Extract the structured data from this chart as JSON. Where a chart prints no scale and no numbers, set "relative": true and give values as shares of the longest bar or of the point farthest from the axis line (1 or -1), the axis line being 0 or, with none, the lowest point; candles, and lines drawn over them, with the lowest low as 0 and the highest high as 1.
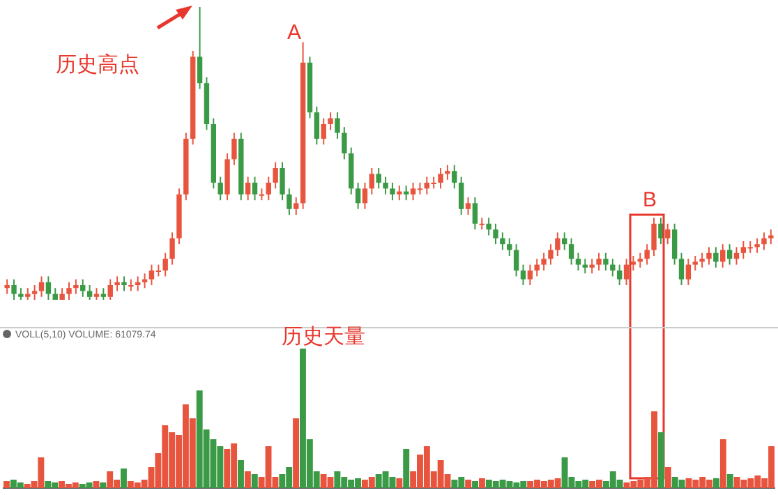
{
  "chart_data": [
    {
      "type": "candlestick",
      "relative": true,
      "annotations": [
        "历史高点",
        "A",
        "B"
      ],
      "categories": [
        null,
        null,
        null,
        null,
        null,
        null,
        null,
        null,
        null,
        null,
        null,
        null,
        null,
        null,
        null,
        null,
        null,
        null,
        null,
        null,
        null,
        null,
        null,
        null,
        null,
        null,
        null,
        null,
        null,
        null,
        null,
        null,
        null,
        null,
        null,
        null,
        null,
        null,
        null,
        null,
        null,
        null,
        null,
        null,
        null,
        null,
        null,
        null,
        null,
        null,
        null,
        null,
        null,
        null,
        null,
        null,
        null,
        null,
        null,
        null,
        null,
        null,
        null,
        null,
        null,
        null,
        null,
        null,
        null,
        null,
        null,
        null,
        null,
        null,
        null,
        null,
        null,
        null,
        null,
        null,
        null,
        null,
        null,
        null,
        null,
        null,
        null,
        null,
        null,
        null,
        null,
        null,
        null,
        null,
        null,
        null,
        null,
        null,
        null,
        null,
        null,
        null,
        null,
        null,
        null,
        null,
        null,
        null,
        null,
        null,
        null,
        null
      ],
      "ohlc": [
        [
          0.04,
          0.07,
          0.02,
          0.05
        ],
        [
          0.05,
          0.07,
          0,
          0.02
        ],
        [
          0.02,
          0.04,
          0,
          0.01
        ],
        [
          0.01,
          0.04,
          0,
          0.02
        ],
        [
          0.02,
          0.05,
          0,
          0.03
        ],
        [
          0.03,
          0.08,
          0.01,
          0.06
        ],
        [
          0.06,
          0.08,
          0,
          0.02
        ],
        [
          0.02,
          0.04,
          0,
          0
        ],
        [
          0,
          0.04,
          0,
          0.02
        ],
        [
          0.02,
          0.06,
          0,
          0.04
        ],
        [
          0.04,
          0.07,
          0.02,
          0.05
        ],
        [
          0.05,
          0.07,
          0.01,
          0.03
        ],
        [
          0.03,
          0.05,
          0,
          0.01
        ],
        [
          0.01,
          0.04,
          0,
          0.02
        ],
        [
          0.02,
          0.04,
          0,
          0.01
        ],
        [
          0.01,
          0.07,
          0,
          0.05
        ],
        [
          0.05,
          0.08,
          0.03,
          0.06
        ],
        [
          0.06,
          0.08,
          0.03,
          0.05
        ],
        [
          0.05,
          0.07,
          0.03,
          0.05
        ],
        [
          0.05,
          0.08,
          0.03,
          0.06
        ],
        [
          0.06,
          0.09,
          0.04,
          0.07
        ],
        [
          0.07,
          0.12,
          0.05,
          0.1
        ],
        [
          0.1,
          0.12,
          0.08,
          0.1
        ],
        [
          0.1,
          0.16,
          0.08,
          0.14
        ],
        [
          0.14,
          0.23,
          0.12,
          0.21
        ],
        [
          0.21,
          0.38,
          0.19,
          0.36
        ],
        [
          0.36,
          0.57,
          0.34,
          0.55
        ],
        [
          0.55,
          0.85,
          0.53,
          0.83
        ],
        [
          0.83,
          1,
          0.72,
          0.74
        ],
        [
          0.74,
          0.76,
          0.58,
          0.6
        ],
        [
          0.6,
          0.62,
          0.38,
          0.4
        ],
        [
          0.4,
          0.42,
          0.34,
          0.36
        ],
        [
          0.36,
          0.5,
          0.34,
          0.48
        ],
        [
          0.48,
          0.57,
          0.46,
          0.55
        ],
        [
          0.55,
          0.57,
          0.34,
          0.36
        ],
        [
          0.36,
          0.42,
          0.34,
          0.4
        ],
        [
          0.4,
          0.42,
          0.34,
          0.36
        ],
        [
          0.36,
          0.38,
          0.34,
          0.36
        ],
        [
          0.36,
          0.42,
          0.34,
          0.4
        ],
        [
          0.4,
          0.47,
          0.38,
          0.45
        ],
        [
          0.45,
          0.47,
          0.34,
          0.36
        ],
        [
          0.36,
          0.38,
          0.29,
          0.31
        ],
        [
          0.31,
          0.35,
          0.29,
          0.33
        ],
        [
          0.33,
          0.88,
          0.31,
          0.81
        ],
        [
          0.81,
          0.83,
          0.62,
          0.64
        ],
        [
          0.64,
          0.66,
          0.53,
          0.55
        ],
        [
          0.55,
          0.62,
          0.53,
          0.6
        ],
        [
          0.6,
          0.64,
          0.58,
          0.62
        ],
        [
          0.62,
          0.64,
          0.55,
          0.57
        ],
        [
          0.57,
          0.59,
          0.48,
          0.5
        ],
        [
          0.5,
          0.52,
          0.36,
          0.38
        ],
        [
          0.38,
          0.4,
          0.31,
          0.33
        ],
        [
          0.33,
          0.4,
          0.31,
          0.38
        ],
        [
          0.38,
          0.45,
          0.36,
          0.43
        ],
        [
          0.43,
          0.45,
          0.38,
          0.4
        ],
        [
          0.4,
          0.42,
          0.36,
          0.38
        ],
        [
          0.38,
          0.4,
          0.34,
          0.36
        ],
        [
          0.36,
          0.39,
          0.34,
          0.37
        ],
        [
          0.37,
          0.39,
          0.34,
          0.36
        ],
        [
          0.36,
          0.4,
          0.34,
          0.38
        ],
        [
          0.38,
          0.4,
          0.36,
          0.38
        ],
        [
          0.38,
          0.42,
          0.36,
          0.4
        ],
        [
          0.4,
          0.42,
          0.38,
          0.4
        ],
        [
          0.4,
          0.45,
          0.38,
          0.43
        ],
        [
          0.43,
          0.46,
          0.41,
          0.44
        ],
        [
          0.44,
          0.46,
          0.38,
          0.4
        ],
        [
          0.4,
          0.42,
          0.29,
          0.31
        ],
        [
          0.31,
          0.35,
          0.29,
          0.33
        ],
        [
          0.33,
          0.35,
          0.24,
          0.26
        ],
        [
          0.26,
          0.28,
          0.24,
          0.26
        ],
        [
          0.26,
          0.28,
          0.22,
          0.24
        ],
        [
          0.24,
          0.26,
          0.19,
          0.21
        ],
        [
          0.21,
          0.23,
          0.17,
          0.19
        ],
        [
          0.19,
          0.21,
          0.15,
          0.17
        ],
        [
          0.17,
          0.19,
          0.08,
          0.1
        ],
        [
          0.1,
          0.12,
          0.05,
          0.07
        ],
        [
          0.07,
          0.12,
          0.05,
          0.1
        ],
        [
          0.1,
          0.14,
          0.08,
          0.12
        ],
        [
          0.12,
          0.16,
          0.1,
          0.14
        ],
        [
          0.14,
          0.19,
          0.12,
          0.17
        ],
        [
          0.17,
          0.23,
          0.15,
          0.21
        ],
        [
          0.21,
          0.23,
          0.17,
          0.19
        ],
        [
          0.19,
          0.21,
          0.12,
          0.14
        ],
        [
          0.14,
          0.16,
          0.1,
          0.12
        ],
        [
          0.12,
          0.14,
          0.09,
          0.11
        ],
        [
          0.11,
          0.14,
          0.09,
          0.12
        ],
        [
          0.12,
          0.16,
          0.1,
          0.14
        ],
        [
          0.14,
          0.16,
          0.1,
          0.12
        ],
        [
          0.12,
          0.14,
          0.08,
          0.1
        ],
        [
          0.1,
          0.12,
          0.05,
          0.07
        ],
        [
          0.07,
          0.14,
          0.05,
          0.12
        ],
        [
          0.12,
          0.15,
          0.1,
          0.13
        ],
        [
          0.13,
          0.16,
          0.11,
          0.14
        ],
        [
          0.14,
          0.19,
          0.12,
          0.17
        ],
        [
          0.17,
          0.28,
          0.15,
          0.26
        ],
        [
          0.26,
          0.28,
          0.19,
          0.21
        ],
        [
          0.21,
          0.26,
          0.19,
          0.24
        ],
        [
          0.24,
          0.26,
          0.12,
          0.14
        ],
        [
          0.14,
          0.16,
          0.05,
          0.07
        ],
        [
          0.07,
          0.14,
          0.05,
          0.12
        ],
        [
          0.12,
          0.15,
          0.1,
          0.13
        ],
        [
          0.13,
          0.16,
          0.11,
          0.14
        ],
        [
          0.14,
          0.18,
          0.12,
          0.16
        ],
        [
          0.16,
          0.18,
          0.11,
          0.13
        ],
        [
          0.13,
          0.19,
          0.11,
          0.17
        ],
        [
          0.17,
          0.19,
          0.12,
          0.14
        ],
        [
          0.14,
          0.18,
          0.12,
          0.16
        ],
        [
          0.16,
          0.2,
          0.14,
          0.18
        ],
        [
          0.18,
          0.2,
          0.16,
          0.18
        ],
        [
          0.18,
          0.21,
          0.16,
          0.19
        ],
        [
          0.19,
          0.23,
          0.17,
          0.21
        ],
        [
          0.21,
          0.24,
          0.19,
          0.22
        ]
      ],
      "colors": [
        "#e8553e",
        "#3a9a45",
        "#3a9a45",
        "#e8553e",
        "#e8553e",
        "#e8553e",
        "#3a9a45",
        "#3a9a45",
        "#e8553e",
        "#e8553e",
        "#e8553e",
        "#3a9a45",
        "#3a9a45",
        "#e8553e",
        "#3a9a45",
        "#e8553e",
        "#e8553e",
        "#3a9a45",
        "#e8553e",
        "#e8553e",
        "#e8553e",
        "#e8553e",
        "#e8553e",
        "#e8553e",
        "#e8553e",
        "#e8553e",
        "#e8553e",
        "#e8553e",
        "#3a9a45",
        "#3a9a45",
        "#3a9a45",
        "#3a9a45",
        "#e8553e",
        "#e8553e",
        "#3a9a45",
        "#e8553e",
        "#3a9a45",
        "#e8553e",
        "#e8553e",
        "#e8553e",
        "#3a9a45",
        "#3a9a45",
        "#e8553e",
        "#e8553e",
        "#3a9a45",
        "#3a9a45",
        "#e8553e",
        "#e8553e",
        "#3a9a45",
        "#3a9a45",
        "#3a9a45",
        "#3a9a45",
        "#e8553e",
        "#e8553e",
        "#3a9a45",
        "#3a9a45",
        "#3a9a45",
        "#e8553e",
        "#3a9a45",
        "#e8553e",
        "#e8553e",
        "#e8553e",
        "#e8553e",
        "#e8553e",
        "#e8553e",
        "#3a9a45",
        "#3a9a45",
        "#e8553e",
        "#3a9a45",
        "#e8553e",
        "#3a9a45",
        "#3a9a45",
        "#3a9a45",
        "#3a9a45",
        "#3a9a45",
        "#3a9a45",
        "#e8553e",
        "#e8553e",
        "#e8553e",
        "#e8553e",
        "#e8553e",
        "#3a9a45",
        "#3a9a45",
        "#3a9a45",
        "#3a9a45",
        "#e8553e",
        "#e8553e",
        "#3a9a45",
        "#3a9a45",
        "#3a9a45",
        "#e8553e",
        "#e8553e",
        "#e8553e",
        "#e8553e",
        "#e8553e",
        "#3a9a45",
        "#e8553e",
        "#3a9a45",
        "#3a9a45",
        "#e8553e",
        "#e8553e",
        "#e8553e",
        "#e8553e",
        "#3a9a45",
        "#e8553e",
        "#3a9a45",
        "#e8553e",
        "#e8553e",
        "#e8553e",
        "#e8553e",
        "#e8553e",
        "#e8553e"
      ]
    },
    {
      "type": "bar",
      "relative": true,
      "title": "VOLL(5,10)  VOLUME: 61079.74",
      "annotations": [
        "历史天量"
      ],
      "categories": [
        null,
        null,
        null,
        null,
        null,
        null,
        null,
        null,
        null,
        null,
        null,
        null,
        null,
        null,
        null,
        null,
        null,
        null,
        null,
        null,
        null,
        null,
        null,
        null,
        null,
        null,
        null,
        null,
        null,
        null,
        null,
        null,
        null,
        null,
        null,
        null,
        null,
        null,
        null,
        null,
        null,
        null,
        null,
        null,
        null,
        null,
        null,
        null,
        null,
        null,
        null,
        null,
        null,
        null,
        null,
        null,
        null,
        null,
        null,
        null,
        null,
        null,
        null,
        null,
        null,
        null,
        null,
        null,
        null,
        null,
        null,
        null,
        null,
        null,
        null,
        null,
        null,
        null,
        null,
        null,
        null,
        null,
        null,
        null,
        null,
        null,
        null,
        null,
        null,
        null,
        null,
        null,
        null,
        null,
        null,
        null,
        null,
        null,
        null,
        null,
        null,
        null,
        null,
        null,
        null,
        null,
        null,
        null,
        null,
        null,
        null,
        null
      ],
      "values": [
        0.05,
        0.06,
        0.04,
        0.03,
        0.05,
        0.22,
        0.05,
        0.04,
        0.05,
        0.03,
        0.04,
        0.03,
        0.04,
        0.05,
        0.04,
        0.12,
        0.06,
        0.14,
        0.05,
        0.04,
        0.06,
        0.15,
        0.25,
        0.45,
        0.4,
        0.38,
        0.6,
        0.5,
        0.7,
        0.42,
        0.35,
        0.3,
        0.28,
        0.32,
        0.2,
        0.12,
        0.1,
        0.08,
        0.3,
        0.08,
        0.1,
        0.15,
        0.5,
        1,
        0.35,
        0.12,
        0.1,
        0.08,
        0.12,
        0.08,
        0.06,
        0.07,
        0.06,
        0.08,
        0.1,
        0.12,
        0.08,
        0.07,
        0.28,
        0.12,
        0.24,
        0.3,
        0.12,
        0.2,
        0.1,
        0.06,
        0.08,
        0.06,
        0.05,
        0.07,
        0.06,
        0.05,
        0.06,
        0.05,
        0.04,
        0.05,
        0.05,
        0.06,
        0.05,
        0.06,
        0.07,
        0.22,
        0.08,
        0.05,
        0.06,
        0.05,
        0.06,
        0.05,
        0.12,
        0.06,
        0.04,
        0.05,
        0.06,
        0.08,
        0.55,
        0.4,
        0.15,
        0.08,
        0.06,
        0.07,
        0.06,
        0.08,
        0.06,
        0.07,
        0.35,
        0.1,
        0.08,
        0.06,
        0.07,
        0.09,
        0.07,
        0.3
      ],
      "colors": [
        "#e8553e",
        "#3a9a45",
        "#3a9a45",
        "#e8553e",
        "#e8553e",
        "#e8553e",
        "#3a9a45",
        "#3a9a45",
        "#e8553e",
        "#e8553e",
        "#e8553e",
        "#3a9a45",
        "#3a9a45",
        "#e8553e",
        "#3a9a45",
        "#e8553e",
        "#e8553e",
        "#3a9a45",
        "#e8553e",
        "#e8553e",
        "#e8553e",
        "#e8553e",
        "#e8553e",
        "#e8553e",
        "#e8553e",
        "#e8553e",
        "#e8553e",
        "#e8553e",
        "#3a9a45",
        "#3a9a45",
        "#3a9a45",
        "#3a9a45",
        "#e8553e",
        "#e8553e",
        "#3a9a45",
        "#e8553e",
        "#3a9a45",
        "#e8553e",
        "#e8553e",
        "#e8553e",
        "#3a9a45",
        "#3a9a45",
        "#e8553e",
        "#3a9a45",
        "#3a9a45",
        "#3a9a45",
        "#e8553e",
        "#e8553e",
        "#3a9a45",
        "#3a9a45",
        "#3a9a45",
        "#3a9a45",
        "#e8553e",
        "#e8553e",
        "#3a9a45",
        "#3a9a45",
        "#3a9a45",
        "#e8553e",
        "#3a9a45",
        "#e8553e",
        "#e8553e",
        "#e8553e",
        "#e8553e",
        "#e8553e",
        "#e8553e",
        "#3a9a45",
        "#3a9a45",
        "#e8553e",
        "#3a9a45",
        "#e8553e",
        "#3a9a45",
        "#3a9a45",
        "#3a9a45",
        "#3a9a45",
        "#3a9a45",
        "#3a9a45",
        "#e8553e",
        "#e8553e",
        "#e8553e",
        "#e8553e",
        "#e8553e",
        "#3a9a45",
        "#3a9a45",
        "#3a9a45",
        "#3a9a45",
        "#e8553e",
        "#e8553e",
        "#3a9a45",
        "#3a9a45",
        "#3a9a45",
        "#e8553e",
        "#e8553e",
        "#e8553e",
        "#e8553e",
        "#e8553e",
        "#3a9a45",
        "#e8553e",
        "#3a9a45",
        "#3a9a45",
        "#e8553e",
        "#e8553e",
        "#e8553e",
        "#e8553e",
        "#3a9a45",
        "#e8553e",
        "#3a9a45",
        "#e8553e",
        "#e8553e",
        "#e8553e",
        "#e8553e",
        "#e8553e",
        "#e8553e"
      ]
    }
  ]
}
